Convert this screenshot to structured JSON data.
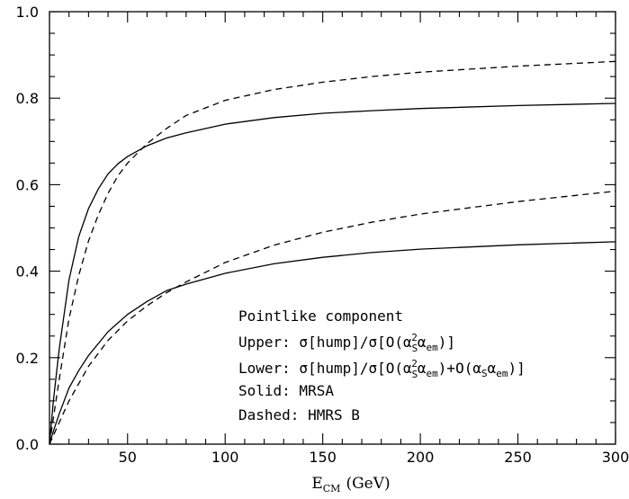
{
  "chart_data": {
    "type": "line",
    "x_axis": {
      "title_main": "E",
      "title_sub": "CM",
      "title_unit": "(GeV)",
      "lim": [
        10,
        300
      ],
      "tick_values": [
        50,
        100,
        150,
        200,
        250,
        300
      ],
      "tick_labels": [
        "50",
        "100",
        "150",
        "200",
        "250",
        "300"
      ]
    },
    "y_axis": {
      "lim": [
        0,
        1
      ],
      "tick_values": [
        0,
        0.2,
        0.4,
        0.6,
        0.8,
        1.0
      ],
      "tick_labels": [
        "0.0",
        "0.2",
        "0.4",
        "0.6",
        "0.8",
        "1.0"
      ]
    },
    "grid": false,
    "series": [
      {
        "group": "upper",
        "style": "solid",
        "x": [
          10,
          12,
          15,
          20,
          25,
          30,
          35,
          40,
          45,
          50,
          60,
          70,
          80,
          100,
          125,
          150,
          175,
          200,
          250,
          300
        ],
        "y": [
          0.0,
          0.1,
          0.22,
          0.38,
          0.48,
          0.545,
          0.59,
          0.625,
          0.648,
          0.665,
          0.69,
          0.708,
          0.72,
          0.74,
          0.755,
          0.765,
          0.771,
          0.776,
          0.783,
          0.788
        ]
      },
      {
        "group": "upper",
        "style": "dashed",
        "x": [
          10,
          12,
          15,
          20,
          25,
          30,
          35,
          40,
          45,
          50,
          60,
          70,
          80,
          100,
          125,
          150,
          175,
          200,
          250,
          300
        ],
        "y": [
          0.0,
          0.06,
          0.15,
          0.29,
          0.39,
          0.47,
          0.53,
          0.58,
          0.62,
          0.65,
          0.695,
          0.73,
          0.76,
          0.795,
          0.82,
          0.837,
          0.85,
          0.86,
          0.874,
          0.885
        ]
      },
      {
        "group": "lower",
        "style": "solid",
        "x": [
          10,
          12,
          15,
          20,
          25,
          30,
          40,
          50,
          60,
          70,
          80,
          100,
          125,
          150,
          175,
          200,
          250,
          300
        ],
        "y": [
          0.0,
          0.03,
          0.07,
          0.13,
          0.17,
          0.205,
          0.26,
          0.3,
          0.33,
          0.355,
          0.37,
          0.395,
          0.417,
          0.432,
          0.443,
          0.451,
          0.461,
          0.468
        ]
      },
      {
        "group": "lower",
        "style": "dashed",
        "x": [
          10,
          12,
          15,
          20,
          25,
          30,
          40,
          50,
          60,
          70,
          80,
          100,
          125,
          150,
          175,
          200,
          250,
          300
        ],
        "y": [
          0.0,
          0.02,
          0.05,
          0.1,
          0.14,
          0.18,
          0.24,
          0.285,
          0.32,
          0.35,
          0.375,
          0.42,
          0.46,
          0.49,
          0.513,
          0.532,
          0.561,
          0.585
        ]
      }
    ],
    "annotations": {
      "title": "Pointlike component",
      "upper": "Upper: σ[hump]/σ[O(α_s²α_em)]",
      "lower": "Lower: σ[hump]/σ[O(α_s²α_em)+O(α_sα_em)]",
      "solid": "Solid: MRSA",
      "dashed": "Dashed: HMRS B"
    }
  }
}
